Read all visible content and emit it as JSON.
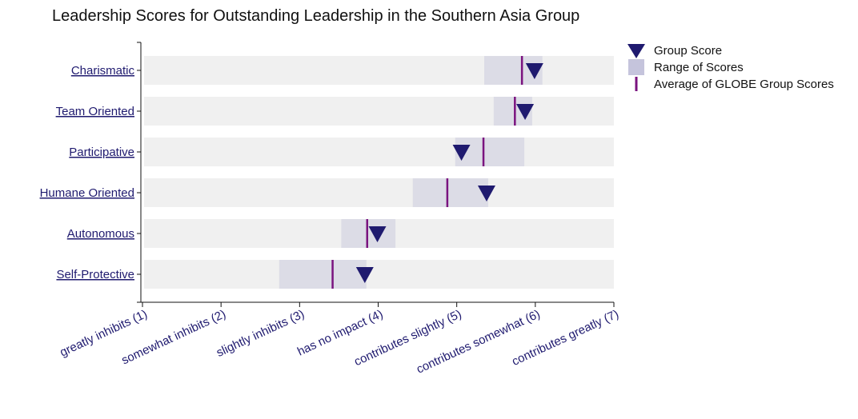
{
  "chart_data": {
    "type": "range-dot",
    "title": "Leadership Scores for Outstanding Leadership in the Southern Asia Group",
    "xlim": [
      1,
      7
    ],
    "x_ticks": [
      {
        "value": 1,
        "label": "greatly inhibits (1)"
      },
      {
        "value": 2,
        "label": "somewhat inhibits (2)"
      },
      {
        "value": 3,
        "label": "slightly inhibits (3)"
      },
      {
        "value": 4,
        "label": "has no impact (4)"
      },
      {
        "value": 5,
        "label": "contributes slightly (5)"
      },
      {
        "value": 6,
        "label": "contributes somewhat (6)"
      },
      {
        "value": 7,
        "label": "contributes greatly (7)"
      }
    ],
    "categories": [
      "Charismatic",
      "Team Oriented",
      "Participative",
      "Humane Oriented",
      "Autonomous",
      "Self-Protective"
    ],
    "series": [
      {
        "name": "Group Score",
        "values": [
          5.99,
          5.87,
          5.06,
          5.38,
          3.99,
          3.83
        ]
      },
      {
        "name": "Range of Scores",
        "ranges": [
          [
            5.35,
            6.09
          ],
          [
            5.47,
            5.96
          ],
          [
            4.98,
            5.86
          ],
          [
            4.44,
            5.4
          ],
          [
            3.53,
            4.22
          ],
          [
            2.74,
            3.85
          ]
        ]
      },
      {
        "name": "Average of GLOBE Group Scores",
        "values": [
          5.83,
          5.74,
          5.34,
          4.88,
          3.86,
          3.42
        ]
      }
    ],
    "legend": {
      "position": "top-right",
      "items": [
        {
          "label": "Group Score",
          "marker": "triangle-down-icon"
        },
        {
          "label": "Range of Scores",
          "marker": "square-icon"
        },
        {
          "label": "Average of GLOBE Group Scores",
          "marker": "vertical-line-icon"
        }
      ]
    },
    "grid": false,
    "colors": {
      "group_score": "#1f1a6f",
      "range": "#dcdce6",
      "average": "#7a137f",
      "background_band": "#f0f0f0",
      "labels": "#1f1a6f",
      "axis": "#111111",
      "legend_range": "#c5c4dc"
    }
  }
}
